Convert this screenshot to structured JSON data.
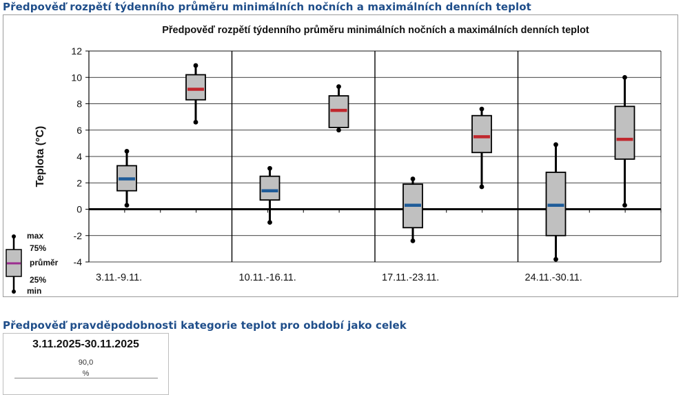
{
  "headings": {
    "chart_section": "Předpověď rozpětí týdenního průměru minimálních nočních a maximálních denních teplot",
    "probability_section": "Předpověď pravděpodobnosti kategorie teplot pro období jako celek"
  },
  "summary": {
    "period": "3.11.2025-30.11.2025",
    "value": "90,0",
    "unit": "%"
  },
  "colors": {
    "heading": "#1f4e8a",
    "box_fill": "#c0c0c0",
    "min_mean": "#1f5c99",
    "max_mean": "#c0272d",
    "legend_mean": "#9b2d8f"
  },
  "chart_data": {
    "type": "boxplot",
    "title": "Předpověď rozpětí týdenního průměru minimálních nočních a maximálních denních teplot",
    "ylabel": "Teplota (°C)",
    "xlabel": "",
    "ylim": [
      -4,
      12
    ],
    "yticks": [
      -4,
      -2,
      0,
      2,
      4,
      6,
      8,
      10,
      12
    ],
    "grid": true,
    "legend_position": "bottom-left",
    "categories": [
      "3.11.-9.11.",
      "10.11.-16.11.",
      "17.11.-23.11.",
      "24.11.-30.11."
    ],
    "boxes": [
      {
        "week": "3.11.-9.11.",
        "kind": "min",
        "min": 0.3,
        "q1": 1.4,
        "mean": 2.3,
        "q3": 3.3,
        "max": 4.4
      },
      {
        "week": "3.11.-9.11.",
        "kind": "max",
        "min": 6.6,
        "q1": 8.3,
        "mean": 9.1,
        "q3": 10.2,
        "max": 10.9
      },
      {
        "week": "10.11.-16.11.",
        "kind": "min",
        "min": -1.0,
        "q1": 0.7,
        "mean": 1.4,
        "q3": 2.5,
        "max": 3.1
      },
      {
        "week": "10.11.-16.11.",
        "kind": "max",
        "min": 6.0,
        "q1": 6.2,
        "mean": 7.5,
        "q3": 8.6,
        "max": 9.3
      },
      {
        "week": "17.11.-23.11.",
        "kind": "min",
        "min": -2.4,
        "q1": -1.4,
        "mean": 0.3,
        "q3": 1.9,
        "max": 2.3
      },
      {
        "week": "17.11.-23.11.",
        "kind": "max",
        "min": 1.7,
        "q1": 4.3,
        "mean": 5.5,
        "q3": 7.1,
        "max": 7.6
      },
      {
        "week": "24.11.-30.11.",
        "kind": "min",
        "min": -3.8,
        "q1": -2.0,
        "mean": 0.3,
        "q3": 2.8,
        "max": 4.9
      },
      {
        "week": "24.11.-30.11.",
        "kind": "max",
        "min": 0.3,
        "q1": 3.8,
        "mean": 5.3,
        "q3": 7.8,
        "max": 10.0
      }
    ],
    "legend": {
      "max": "max",
      "q3": "75%",
      "mean": "průměr",
      "q1": "25%",
      "min": "min"
    }
  }
}
